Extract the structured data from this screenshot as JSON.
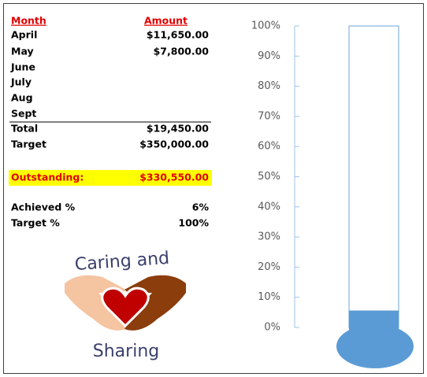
{
  "table": {
    "header": [
      "Month",
      "Amount"
    ],
    "rows": [
      {
        "month": "April",
        "amount": "$11,650.00"
      },
      {
        "month": "May",
        "amount": "$7,800.00"
      },
      {
        "month": "June"
      },
      {
        "month": "July"
      },
      {
        "month": "Aug"
      },
      {
        "month": "Sept"
      }
    ],
    "totals": [
      [
        "Total",
        "$19,450.00"
      ],
      [
        "Target",
        "$350,000.00"
      ]
    ],
    "outstanding": [
      "Outstanding:",
      "$330,550.00"
    ],
    "percents": [
      [
        "Achieved %",
        "6%"
      ],
      [
        "Target %",
        "100%"
      ]
    ]
  },
  "logo": {
    "top": "Caring and",
    "bottom": "Sharing"
  },
  "chart_data": {
    "type": "bar",
    "values": [
      5.6
    ],
    "color": "#5b9bd5",
    "ylim": [
      0,
      100
    ],
    "yticks": [
      {
        "value": 0,
        "label": "0%"
      },
      {
        "value": 10,
        "label": "10%"
      },
      {
        "value": 20,
        "label": "20%"
      },
      {
        "value": 30,
        "label": "30%"
      },
      {
        "value": 40,
        "label": "40%"
      },
      {
        "value": 50,
        "label": "50%"
      },
      {
        "value": 60,
        "label": "60%"
      },
      {
        "value": 70,
        "label": "70%"
      },
      {
        "value": 80,
        "label": "80%"
      },
      {
        "value": 90,
        "label": "90%"
      },
      {
        "value": 100,
        "label": "100%"
      }
    ]
  }
}
